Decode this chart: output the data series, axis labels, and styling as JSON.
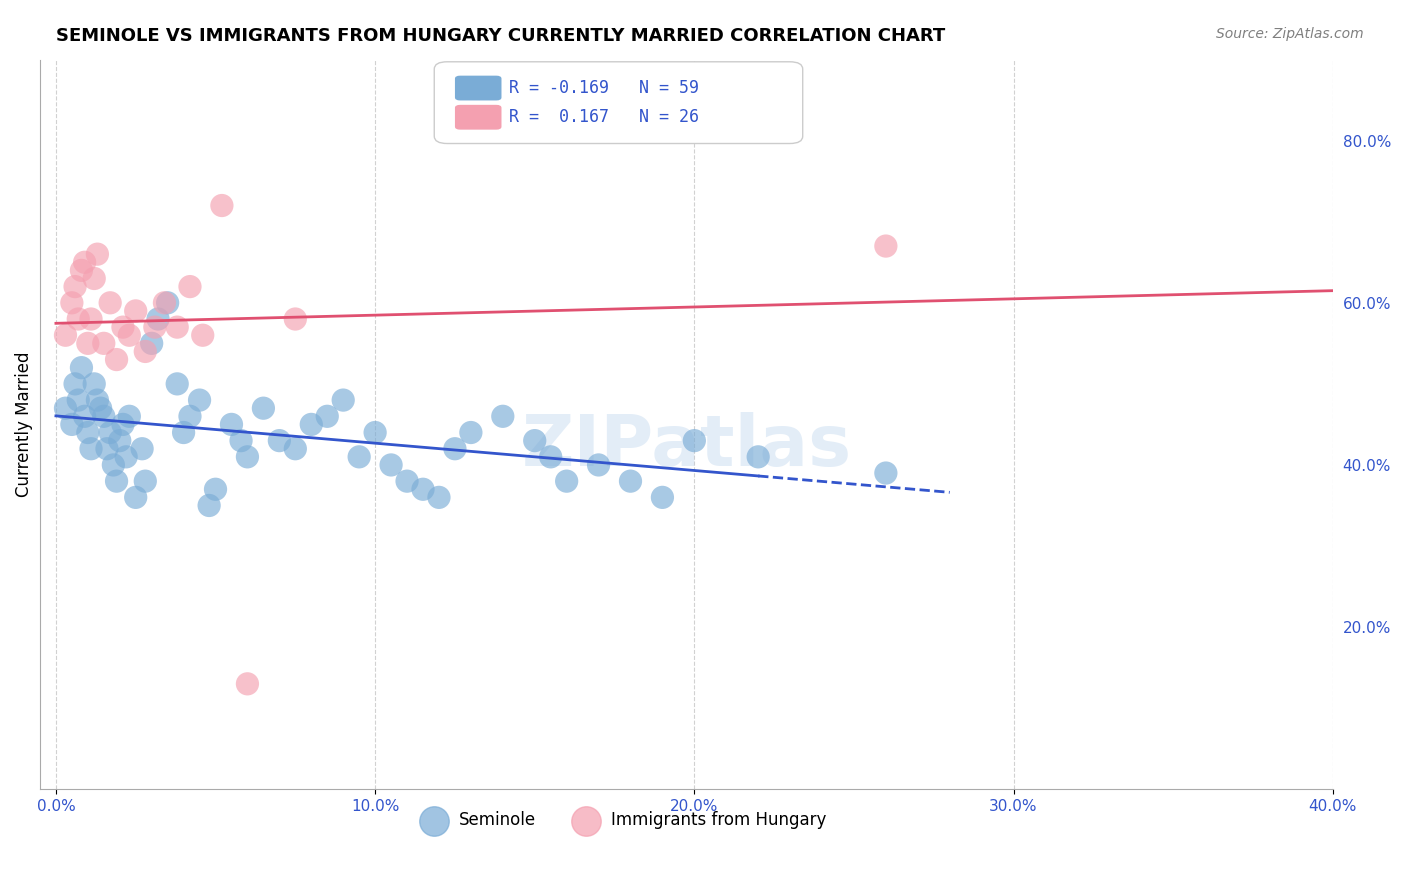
{
  "title": "SEMINOLE VS IMMIGRANTS FROM HUNGARY CURRENTLY MARRIED CORRELATION CHART",
  "source": "Source: ZipAtlas.com",
  "ylabel": "Currently Married",
  "xlim": [
    -0.005,
    0.4
  ],
  "ylim": [
    0.0,
    0.9
  ],
  "right_yticks": [
    0.2,
    0.4,
    0.6,
    0.8
  ],
  "grid_color": "#cccccc",
  "seminole_color": "#7aacd6",
  "hungary_color": "#f4a0b0",
  "seminole_line_color": "#3355cc",
  "hungary_line_color": "#e05070",
  "seminole_R": -0.169,
  "seminole_N": 59,
  "hungary_R": 0.167,
  "hungary_N": 26,
  "watermark": "ZIPatlas",
  "seminole_x": [
    0.003,
    0.005,
    0.006,
    0.007,
    0.008,
    0.009,
    0.01,
    0.011,
    0.012,
    0.013,
    0.014,
    0.015,
    0.016,
    0.017,
    0.018,
    0.019,
    0.02,
    0.021,
    0.022,
    0.023,
    0.025,
    0.027,
    0.028,
    0.03,
    0.032,
    0.035,
    0.038,
    0.04,
    0.042,
    0.045,
    0.048,
    0.05,
    0.055,
    0.058,
    0.06,
    0.065,
    0.07,
    0.075,
    0.08,
    0.085,
    0.09,
    0.095,
    0.1,
    0.105,
    0.11,
    0.115,
    0.12,
    0.125,
    0.13,
    0.14,
    0.15,
    0.155,
    0.16,
    0.17,
    0.18,
    0.19,
    0.2,
    0.22,
    0.26
  ],
  "seminole_y": [
    0.47,
    0.45,
    0.5,
    0.48,
    0.52,
    0.46,
    0.44,
    0.42,
    0.5,
    0.48,
    0.47,
    0.46,
    0.42,
    0.44,
    0.4,
    0.38,
    0.43,
    0.45,
    0.41,
    0.46,
    0.36,
    0.42,
    0.38,
    0.55,
    0.58,
    0.6,
    0.5,
    0.44,
    0.46,
    0.48,
    0.35,
    0.37,
    0.45,
    0.43,
    0.41,
    0.47,
    0.43,
    0.42,
    0.45,
    0.46,
    0.48,
    0.41,
    0.44,
    0.4,
    0.38,
    0.37,
    0.36,
    0.42,
    0.44,
    0.46,
    0.43,
    0.41,
    0.38,
    0.4,
    0.38,
    0.36,
    0.43,
    0.41,
    0.39
  ],
  "hungary_x": [
    0.003,
    0.005,
    0.006,
    0.007,
    0.008,
    0.009,
    0.01,
    0.011,
    0.012,
    0.013,
    0.015,
    0.017,
    0.019,
    0.021,
    0.023,
    0.025,
    0.028,
    0.031,
    0.034,
    0.038,
    0.042,
    0.046,
    0.052,
    0.06,
    0.075,
    0.26
  ],
  "hungary_y": [
    0.56,
    0.6,
    0.62,
    0.58,
    0.64,
    0.65,
    0.55,
    0.58,
    0.63,
    0.66,
    0.55,
    0.6,
    0.53,
    0.57,
    0.56,
    0.59,
    0.54,
    0.57,
    0.6,
    0.57,
    0.62,
    0.56,
    0.72,
    0.13,
    0.58,
    0.67
  ]
}
